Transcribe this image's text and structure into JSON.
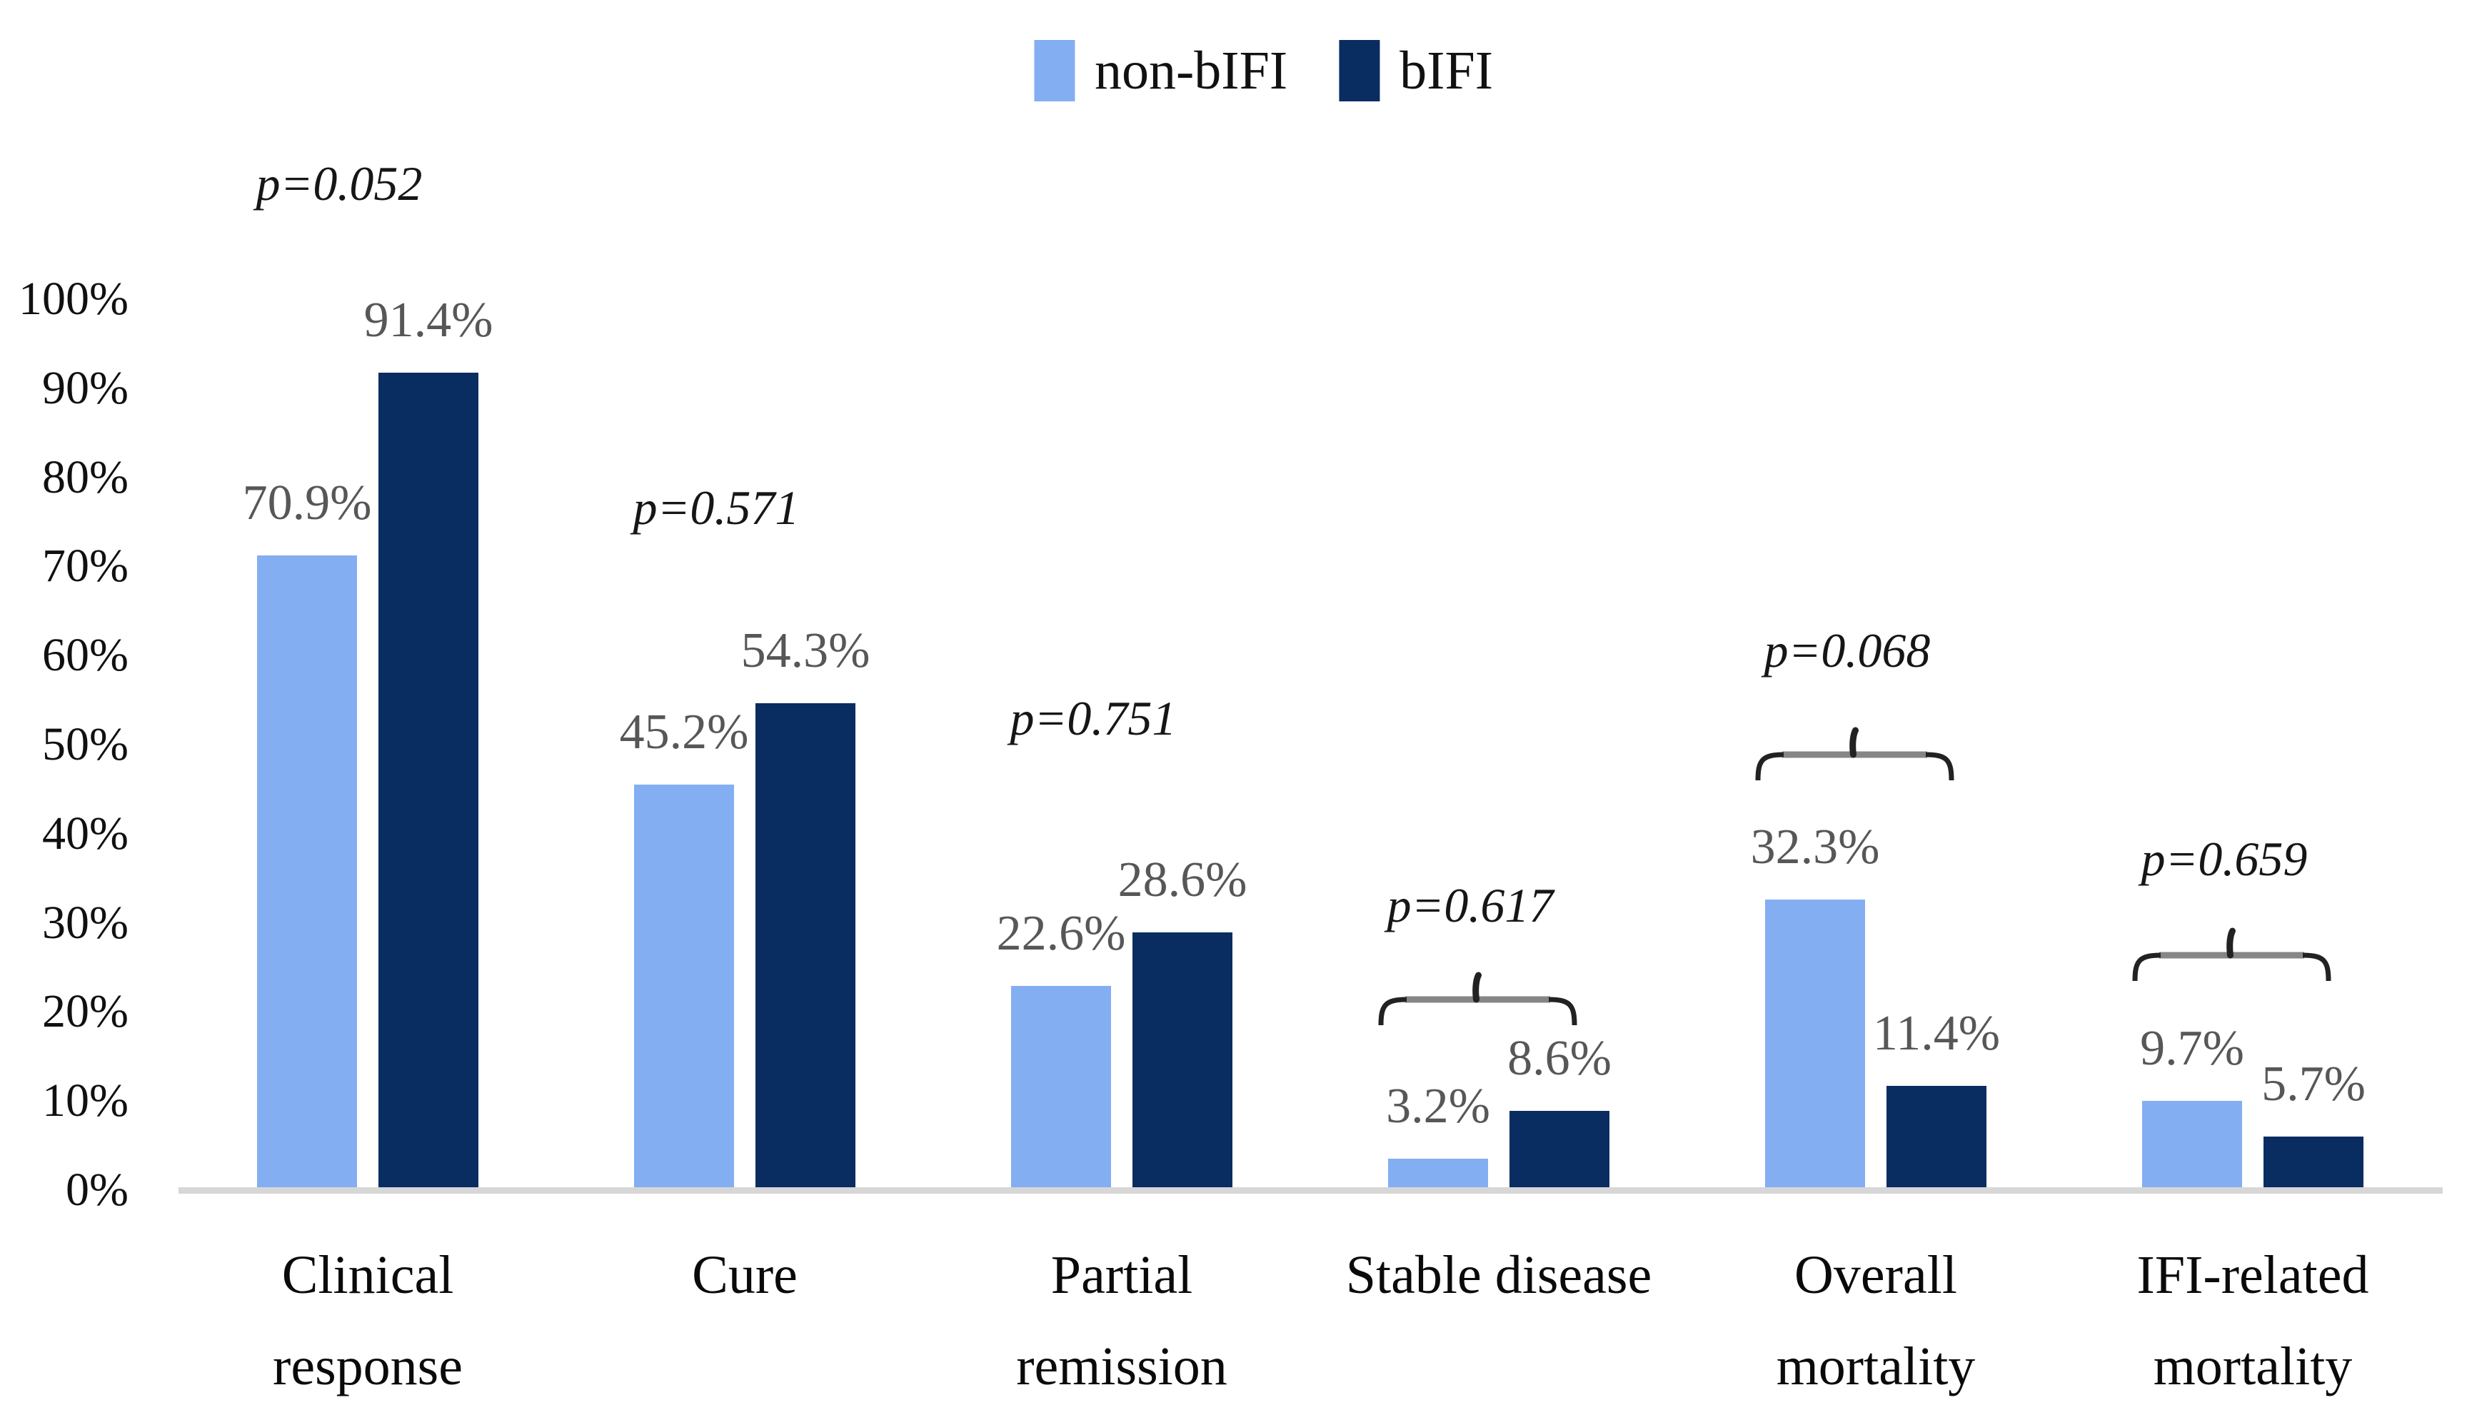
{
  "legend": {
    "items": [
      {
        "label": "non-bIFI",
        "color": "#84AEF2"
      },
      {
        "label": "bIFI",
        "color": "#092C61"
      }
    ]
  },
  "chart_data": {
    "type": "bar",
    "title": "",
    "xlabel": "",
    "ylabel": "",
    "categories": [
      "Clinical response",
      "Cure",
      "Partial remission",
      "Stable disease",
      "Overall mortality",
      "IFI-related mortality"
    ],
    "category_lines": [
      [
        "Clinical",
        "response"
      ],
      [
        "Cure"
      ],
      [
        "Partial",
        "remission"
      ],
      [
        "Stable disease"
      ],
      [
        "Overall",
        "mortality"
      ],
      [
        "IFI-related",
        "mortality"
      ]
    ],
    "series": [
      {
        "name": "non-bIFI",
        "color": "#84AEF2",
        "values": [
          70.9,
          45.2,
          22.6,
          3.2,
          32.3,
          9.7
        ],
        "data_labels": [
          "70.9%",
          "45.2%",
          "22.6%",
          "3.2%",
          "32.3%",
          "9.7%"
        ]
      },
      {
        "name": "bIFI",
        "color": "#092C61",
        "values": [
          91.4,
          54.3,
          28.6,
          8.6,
          11.4,
          5.7
        ],
        "data_labels": [
          "91.4%",
          "54.3%",
          "28.6%",
          "8.6%",
          "11.4%",
          "5.7%"
        ]
      }
    ],
    "p_values": [
      "p=0.052",
      "p=0.571",
      "p=0.751",
      "p=0.617",
      "p=0.068",
      "p=0.659"
    ],
    "brace_groups": [
      false,
      false,
      false,
      true,
      true,
      true
    ],
    "y_axis": {
      "min": 0,
      "max": 100,
      "ticks": [
        "0%",
        "10%",
        "20%",
        "30%",
        "40%",
        "50%",
        "60%",
        "70%",
        "80%",
        "90%",
        "100%"
      ]
    },
    "grid": false,
    "legend_position": "top-center",
    "colors": {
      "axis_line": "#D7D7D7",
      "data_label": "#575757",
      "p_label": "#161616",
      "brace_line": "#868686",
      "brace_ends": "#222222",
      "tick_label": "#101010"
    }
  }
}
